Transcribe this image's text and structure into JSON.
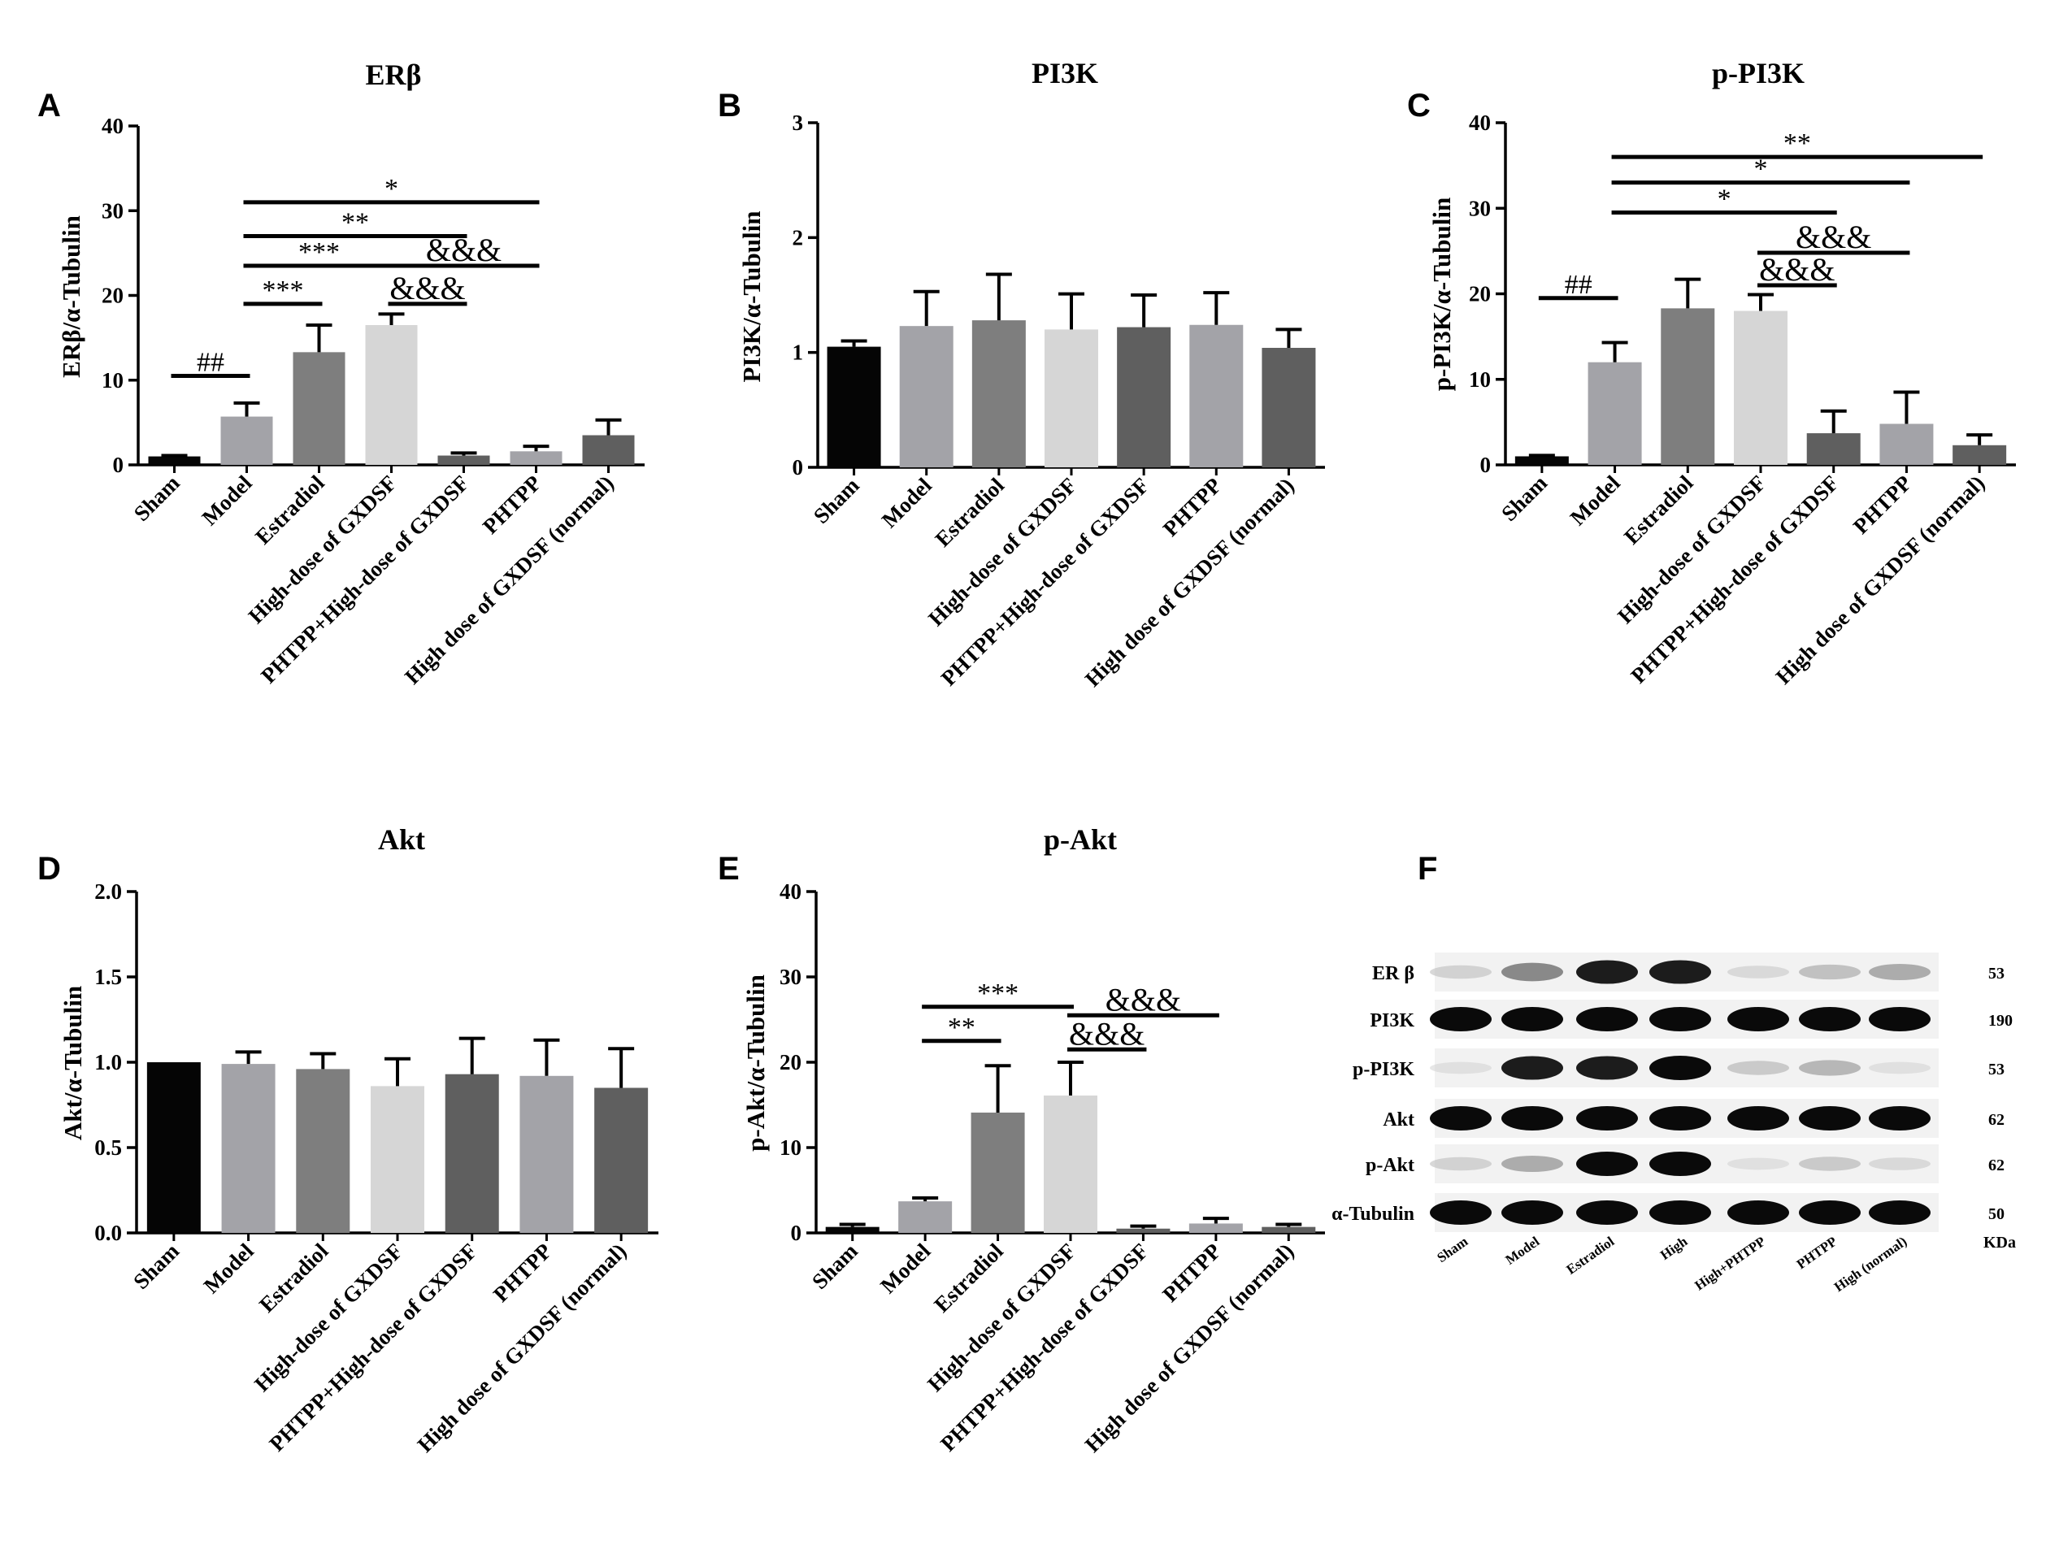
{
  "colors": {
    "Sham": "#050505",
    "Model": "#a3a3a8",
    "Estradiol": "#7e7e7e",
    "High-dose of GXDSF": "#d6d6d6",
    "PHTPP+High-dose of GXDSF": "#5f5f5f",
    "PHTPP": "#a3a3a8",
    "High dose of GXDSF (normal)": "#5f5f5f"
  },
  "chart_data": [
    {
      "panel": "A",
      "type": "bar",
      "title": "ERβ",
      "ylabel": "ERβ/α-Tubulin",
      "ylim": [
        0,
        40
      ],
      "yticks": [
        "0",
        "10",
        "20",
        "30",
        "40"
      ],
      "categories": [
        "Sham",
        "Model",
        "Estradiol",
        "High-dose of GXDSF",
        "PHTPP+High-dose of GXDSF",
        "PHTPP",
        "High dose of GXDSF (normal)"
      ],
      "values": [
        1.0,
        5.7,
        13.3,
        16.5,
        1.1,
        1.6,
        3.5
      ],
      "errors": [
        0.1,
        1.6,
        3.2,
        1.3,
        0.3,
        0.6,
        1.8
      ],
      "annotations": [
        {
          "from": 0,
          "to": 1,
          "y": 10.5,
          "text": "##"
        },
        {
          "from": 1,
          "to": 2,
          "y": 19.0,
          "text": "***"
        },
        {
          "from": 1,
          "to": 3,
          "y": 23.5,
          "text": "***"
        },
        {
          "from": 1,
          "to": 4,
          "y": 27.0,
          "text": "**"
        },
        {
          "from": 1,
          "to": 5,
          "y": 31.0,
          "text": "*"
        },
        {
          "from": 3,
          "to": 4,
          "y": 19.0,
          "text": "&&&"
        },
        {
          "from": 3,
          "to": 5,
          "y": 23.5,
          "text": "&&&"
        }
      ]
    },
    {
      "panel": "B",
      "type": "bar",
      "title": "PI3K",
      "ylabel": "PI3K/α-Tubulin",
      "ylim": [
        0,
        3
      ],
      "yticks": [
        "0",
        "1",
        "2",
        "3"
      ],
      "categories": [
        "Sham",
        "Model",
        "Estradiol",
        "High-dose of GXDSF",
        "PHTPP+High-dose of GXDSF",
        "PHTPP",
        "High dose of GXDSF (normal)"
      ],
      "values": [
        1.05,
        1.23,
        1.28,
        1.2,
        1.22,
        1.24,
        1.04
      ],
      "errors": [
        0.05,
        0.3,
        0.4,
        0.31,
        0.28,
        0.28,
        0.16
      ],
      "annotations": []
    },
    {
      "panel": "C",
      "type": "bar",
      "title": "p-PI3K",
      "ylabel": "p-PI3K/α-Tubulin",
      "ylim": [
        0,
        40
      ],
      "yticks": [
        "0",
        "10",
        "20",
        "30",
        "40"
      ],
      "categories": [
        "Sham",
        "Model",
        "Estradiol",
        "High-dose of GXDSF",
        "PHTPP+High-dose of GXDSF",
        "PHTPP",
        "High dose of GXDSF (normal)"
      ],
      "values": [
        1.0,
        12.0,
        18.3,
        18.0,
        3.7,
        4.8,
        2.3
      ],
      "errors": [
        0.1,
        2.3,
        3.4,
        1.9,
        2.6,
        3.7,
        1.2
      ],
      "annotations": [
        {
          "from": 0,
          "to": 1,
          "y": 19.5,
          "text": "##"
        },
        {
          "from": 1,
          "to": 4,
          "y": 29.5,
          "text": "*"
        },
        {
          "from": 1,
          "to": 5,
          "y": 33.0,
          "text": "*"
        },
        {
          "from": 1,
          "to": 6,
          "y": 36.0,
          "text": "**"
        },
        {
          "from": 3,
          "to": 4,
          "y": 21.0,
          "text": "&&&"
        },
        {
          "from": 3,
          "to": 5,
          "y": 24.8,
          "text": "&&&"
        }
      ]
    },
    {
      "panel": "D",
      "type": "bar",
      "title": "Akt",
      "ylabel": "Akt/α-Tubulin",
      "ylim": [
        0,
        2.0
      ],
      "yticks": [
        "0.0",
        "0.5",
        "1.0",
        "1.5",
        "2.0"
      ],
      "categories": [
        "Sham",
        "Model",
        "Estradiol",
        "High-dose of GXDSF",
        "PHTPP+High-dose of GXDSF",
        "PHTPP",
        "High dose of GXDSF (normal)"
      ],
      "values": [
        1.0,
        0.99,
        0.96,
        0.86,
        0.93,
        0.92,
        0.85
      ],
      "errors": [
        0.0,
        0.07,
        0.09,
        0.16,
        0.21,
        0.21,
        0.23
      ],
      "annotations": []
    },
    {
      "panel": "E",
      "type": "bar",
      "title": "p-Akt",
      "ylabel": "p-Akt/α-Tubulin",
      "ylim": [
        0,
        40
      ],
      "yticks": [
        "0",
        "10",
        "20",
        "30",
        "40"
      ],
      "categories": [
        "Sham",
        "Model",
        "Estradiol",
        "High-dose of GXDSF",
        "PHTPP+High-dose of GXDSF",
        "PHTPP",
        "High dose of GXDSF (normal)"
      ],
      "values": [
        0.7,
        3.7,
        14.1,
        16.1,
        0.5,
        1.1,
        0.7
      ],
      "errors": [
        0.3,
        0.4,
        5.5,
        3.9,
        0.3,
        0.6,
        0.3
      ],
      "annotations": [
        {
          "from": 1,
          "to": 2,
          "y": 22.5,
          "text": "**"
        },
        {
          "from": 1,
          "to": 3,
          "y": 26.5,
          "text": "***"
        },
        {
          "from": 3,
          "to": 4,
          "y": 21.5,
          "text": "&&&"
        },
        {
          "from": 3,
          "to": 5,
          "y": 25.5,
          "text": "&&&"
        }
      ]
    }
  ],
  "blot": {
    "panel": "F",
    "rows": [
      "ER β",
      "PI3K",
      "p-PI3K",
      "Akt",
      "p-Akt",
      "α-Tubulin"
    ],
    "kda": [
      "53",
      "190",
      "53",
      "62",
      "62",
      "50"
    ],
    "kda_unit": "KDa",
    "lanes": [
      "Sham",
      "Model",
      "Estradiol",
      "High",
      "High+PHTPP",
      "PHTPP",
      "High (normal)"
    ],
    "intensity": [
      [
        0.25,
        0.6,
        0.95,
        0.95,
        0.2,
        0.35,
        0.45
      ],
      [
        1,
        1,
        1,
        1,
        1,
        1,
        1
      ],
      [
        0.15,
        0.95,
        0.95,
        1,
        0.3,
        0.4,
        0.15
      ],
      [
        1,
        1,
        1,
        1,
        1,
        1,
        1
      ],
      [
        0.25,
        0.45,
        1,
        1,
        0.15,
        0.3,
        0.2
      ],
      [
        1,
        1,
        1,
        1,
        1,
        1,
        1
      ]
    ]
  }
}
